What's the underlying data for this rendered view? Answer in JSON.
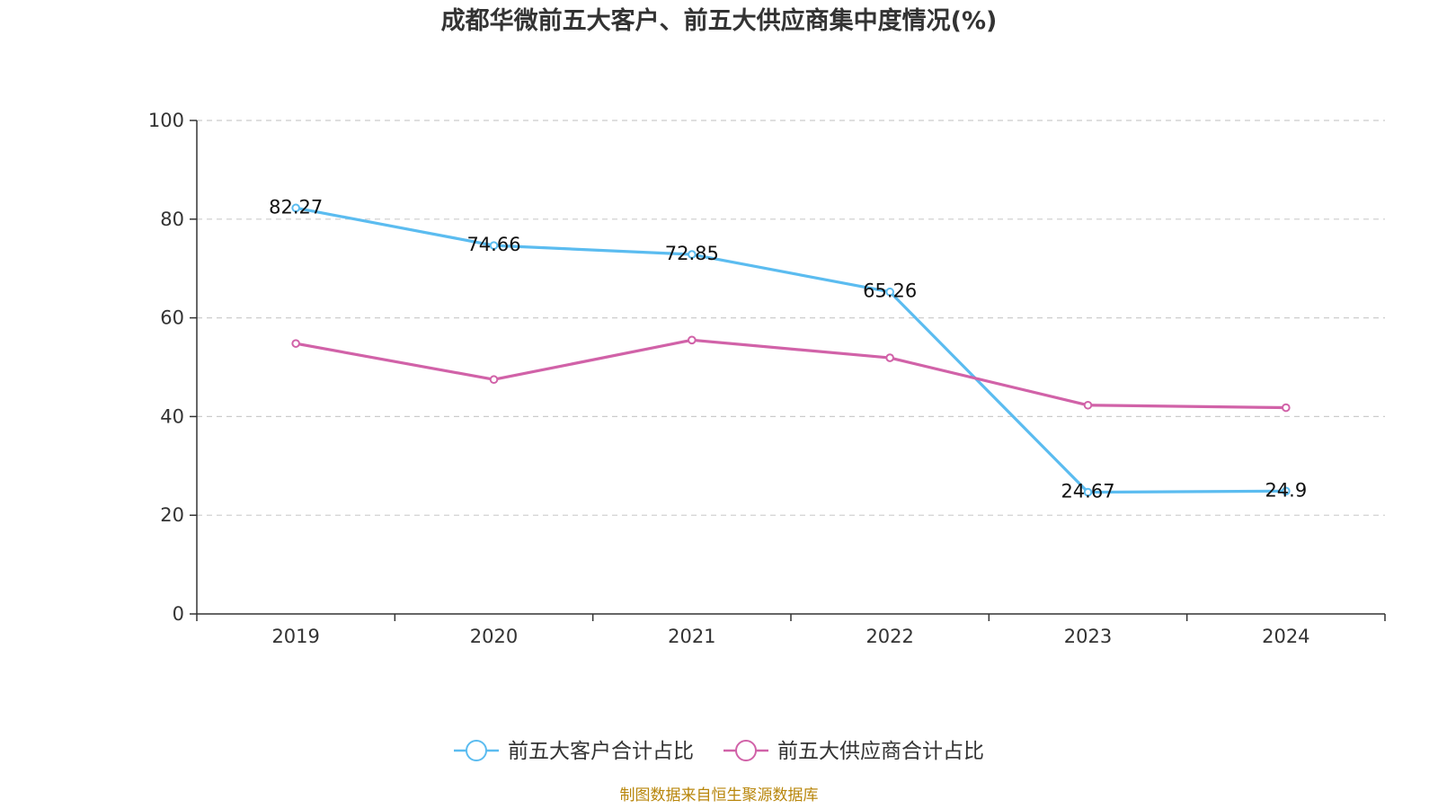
{
  "chart_data": {
    "type": "line",
    "title": "成都华微前五大客户、前五大供应商集中度情况(%)",
    "categories": [
      "2019",
      "2020",
      "2021",
      "2022",
      "2023",
      "2024"
    ],
    "ylim": [
      0,
      100
    ],
    "yticks": [
      0,
      20,
      40,
      60,
      80,
      100
    ],
    "grid": true,
    "legend_position": "bottom",
    "series": [
      {
        "name": "前五大客户合计占比",
        "color": "#5bbcf0",
        "values": [
          82.27,
          74.66,
          72.85,
          65.26,
          24.67,
          24.9
        ],
        "labels": [
          "82.27",
          "74.66",
          "72.85",
          "65.26",
          "24.67",
          "24.9"
        ]
      },
      {
        "name": "前五大供应商合计占比",
        "color": "#d162a8",
        "values": [
          54.8,
          47.5,
          55.5,
          51.9,
          42.3,
          41.8
        ]
      }
    ],
    "source": "制图数据来自恒生聚源数据库"
  }
}
